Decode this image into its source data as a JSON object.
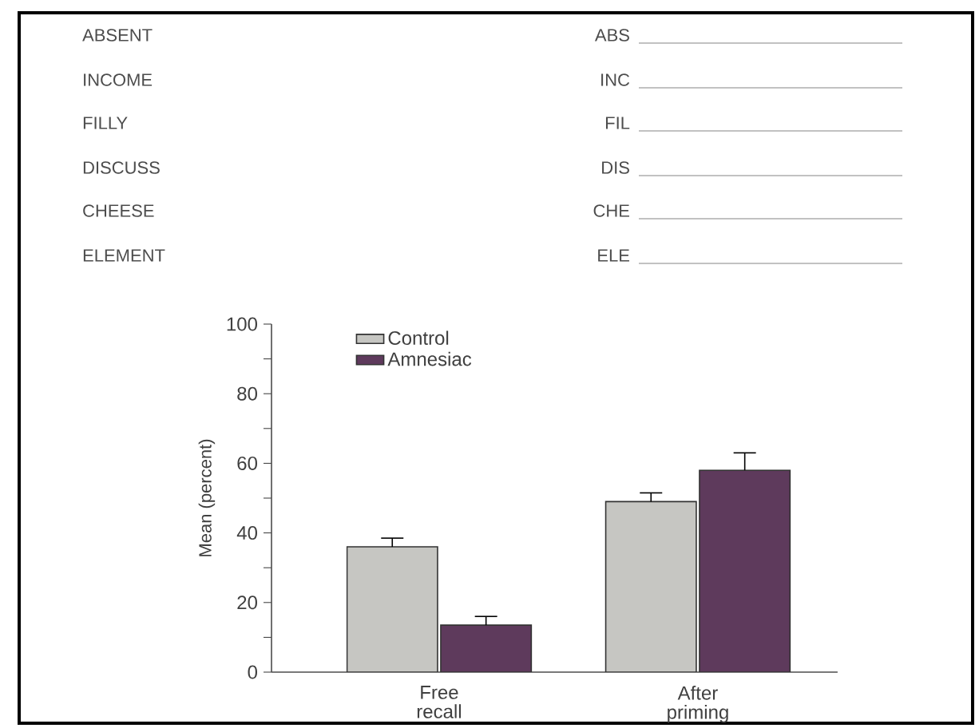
{
  "chart_data": {
    "type": "bar",
    "ylabel": "Mean (percent)",
    "categories": [
      "Free recall",
      "After priming"
    ],
    "series": [
      {
        "name": "Control",
        "color": "#c6c6c2",
        "values": [
          36,
          49
        ],
        "errors": [
          2.5,
          2.5
        ]
      },
      {
        "name": "Amnesiac",
        "color": "#5e3a5c",
        "values": [
          13.5,
          58
        ],
        "errors": [
          2.5,
          5
        ]
      }
    ],
    "ylim": [
      0,
      100
    ],
    "yticks": [
      0,
      {
        "value": 10,
        "label": null
      },
      20,
      {
        "value": 30,
        "label": null
      },
      40,
      {
        "value": 50,
        "label": null
      },
      60,
      {
        "value": 70,
        "label": null
      },
      80,
      {
        "value": 90,
        "label": null
      },
      100
    ],
    "legend": "top left",
    "grid": false,
    "annotations": [
      "ABSENT",
      "ABS",
      "INCOME",
      "INC",
      "FILLY",
      "FIL",
      "DISCUSS",
      "DIS",
      "CHEESE",
      "CHE",
      "ELEMENT",
      "ELE"
    ]
  }
}
